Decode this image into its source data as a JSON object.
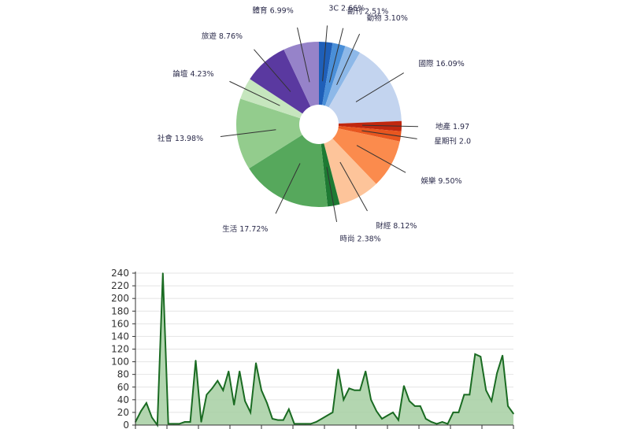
{
  "chart_data": [
    {
      "type": "pie",
      "donut": true,
      "slices": [
        {
          "label": "3C 2.66%",
          "value": 2.66,
          "color": "#1f5fb8"
        },
        {
          "label": "副刊 2.51%",
          "value": 2.51,
          "color": "#4a8fd8"
        },
        {
          "label": "動物 3.10%",
          "value": 3.1,
          "color": "#8db8e8"
        },
        {
          "label": "國際 16.09%",
          "value": 16.09,
          "color": "#c3d4ef"
        },
        {
          "label": "地產 1.97",
          "value": 1.97,
          "color": "#c0280f"
        },
        {
          "label": "星期刊 2.0",
          "value": 2.0,
          "color": "#e8561f"
        },
        {
          "label": "娛樂 9.50%",
          "value": 9.5,
          "color": "#fb8b4d"
        },
        {
          "label": "財經 8.12%",
          "value": 8.12,
          "color": "#fdc49a"
        },
        {
          "label": "時尚 2.38%",
          "value": 2.38,
          "color": "#1e7a33"
        },
        {
          "label": "生活 17.72%",
          "value": 17.72,
          "color": "#56a85c"
        },
        {
          "label": "社會 13.98%",
          "value": 13.98,
          "color": "#93cc8d"
        },
        {
          "label": "論壇 4.23%",
          "value": 4.23,
          "color": "#c6e6be"
        },
        {
          "label": "旅遊 8.76%",
          "value": 8.76,
          "color": "#5a39a0"
        },
        {
          "label": "體育 6.99%",
          "value": 6.99,
          "color": "#9683c9"
        }
      ]
    },
    {
      "type": "area",
      "color": "#1a6b22",
      "fill": "#a6cfa2",
      "ylim": [
        0,
        240
      ],
      "yticks": [
        0,
        20,
        40,
        60,
        80,
        100,
        120,
        140,
        160,
        180,
        200,
        220,
        240
      ],
      "grid": true,
      "values": [
        5,
        22,
        35,
        12,
        0,
        240,
        2,
        2,
        2,
        5,
        5,
        102,
        5,
        48,
        58,
        70,
        55,
        85,
        32,
        85,
        38,
        20,
        98,
        55,
        35,
        10,
        8,
        8,
        25,
        2,
        2,
        2,
        2,
        5,
        10,
        15,
        20,
        88,
        40,
        58,
        55,
        55,
        85,
        40,
        22,
        10,
        15,
        20,
        8,
        62,
        38,
        30,
        30,
        10,
        5,
        2,
        5,
        2,
        20,
        20,
        48,
        48,
        112,
        108,
        55,
        38,
        82,
        110,
        30,
        18
      ]
    }
  ]
}
